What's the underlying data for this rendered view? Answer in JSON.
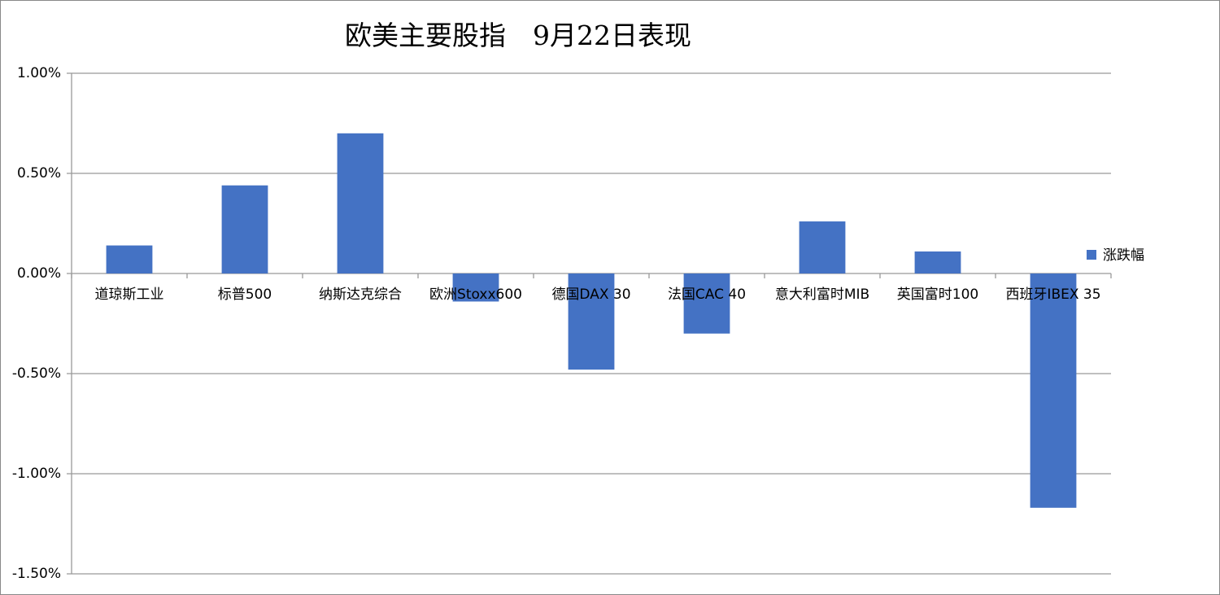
{
  "chart_data": {
    "type": "bar",
    "title": "欧美主要股指　9月22日表现",
    "categories": [
      "道琼斯工业",
      "标普500",
      "纳斯达克综合",
      "欧洲Stoxx600",
      "德国DAX 30",
      "法国CAC 40",
      "意大利富时MIB",
      "英国富时100",
      "西班牙IBEX 35"
    ],
    "series": [
      {
        "name": "涨跌幅",
        "color": "#4472c4",
        "values": [
          0.14,
          0.44,
          0.7,
          -0.14,
          -0.48,
          -0.3,
          0.26,
          0.11,
          -1.17
        ]
      }
    ],
    "ylim": [
      -1.5,
      1.0
    ],
    "yticks": [
      {
        "value": -1.5,
        "label": "-1.50%"
      },
      {
        "value": -1,
        "label": "-1.00%"
      },
      {
        "value": -0.5,
        "label": "-0.50%"
      },
      {
        "value": 0,
        "label": "0.00%"
      },
      {
        "value": 0.5,
        "label": "0.50%"
      },
      {
        "value": 1,
        "label": "1.00%"
      }
    ],
    "grid": true,
    "legend": "right"
  }
}
